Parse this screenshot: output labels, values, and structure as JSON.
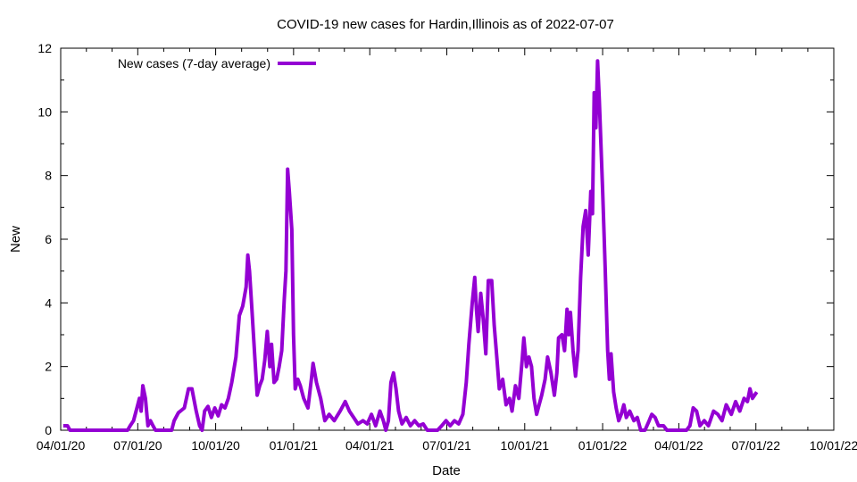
{
  "chart_data": {
    "type": "line",
    "title": "COVID-19 new cases for Hardin,Illinois as of 2022-07-07",
    "xlabel": "Date",
    "ylabel": "New",
    "xlim": [
      "2020-04-01",
      "2022-10-01"
    ],
    "ylim": [
      0,
      12
    ],
    "x_ticks": [
      "04/01/20",
      "07/01/20",
      "10/01/20",
      "01/01/21",
      "04/01/21",
      "07/01/21",
      "10/01/21",
      "01/01/22",
      "04/01/22",
      "07/01/22",
      "10/01/22"
    ],
    "y_ticks": [
      "0",
      "2",
      "4",
      "6",
      "8",
      "10",
      "12"
    ],
    "grid": false,
    "legend_position": "top-left",
    "series": [
      {
        "name": "New cases (7-day average)",
        "color": "#9400d3",
        "points": [
          [
            "2020-04-04",
            0.14
          ],
          [
            "2020-04-09",
            0.14
          ],
          [
            "2020-04-12",
            0
          ],
          [
            "2020-05-01",
            0
          ],
          [
            "2020-06-01",
            0
          ],
          [
            "2020-06-19",
            0
          ],
          [
            "2020-06-22",
            0.14
          ],
          [
            "2020-06-26",
            0.3
          ],
          [
            "2020-06-30",
            0.7
          ],
          [
            "2020-07-03",
            1.0
          ],
          [
            "2020-07-05",
            0.6
          ],
          [
            "2020-07-07",
            1.4
          ],
          [
            "2020-07-10",
            1.0
          ],
          [
            "2020-07-13",
            0.14
          ],
          [
            "2020-07-16",
            0.3
          ],
          [
            "2020-07-19",
            0.14
          ],
          [
            "2020-07-22",
            0
          ],
          [
            "2020-08-10",
            0
          ],
          [
            "2020-08-13",
            0.3
          ],
          [
            "2020-08-18",
            0.55
          ],
          [
            "2020-08-25",
            0.7
          ],
          [
            "2020-08-30",
            1.3
          ],
          [
            "2020-09-03",
            1.3
          ],
          [
            "2020-09-08",
            0.6
          ],
          [
            "2020-09-12",
            0.14
          ],
          [
            "2020-09-15",
            0.0
          ],
          [
            "2020-09-18",
            0.6
          ],
          [
            "2020-09-22",
            0.75
          ],
          [
            "2020-09-26",
            0.4
          ],
          [
            "2020-09-30",
            0.7
          ],
          [
            "2020-10-04",
            0.45
          ],
          [
            "2020-10-08",
            0.8
          ],
          [
            "2020-10-12",
            0.7
          ],
          [
            "2020-10-16",
            1.0
          ],
          [
            "2020-10-20",
            1.5
          ],
          [
            "2020-10-25",
            2.3
          ],
          [
            "2020-10-29",
            3.6
          ],
          [
            "2020-11-02",
            3.9
          ],
          [
            "2020-11-06",
            4.5
          ],
          [
            "2020-11-08",
            5.5
          ],
          [
            "2020-11-10",
            5.0
          ],
          [
            "2020-11-13",
            3.7
          ],
          [
            "2020-11-16",
            2.4
          ],
          [
            "2020-11-19",
            1.1
          ],
          [
            "2020-11-22",
            1.4
          ],
          [
            "2020-11-25",
            1.6
          ],
          [
            "2020-11-28",
            2.2
          ],
          [
            "2020-12-01",
            3.1
          ],
          [
            "2020-12-04",
            2.0
          ],
          [
            "2020-12-06",
            2.7
          ],
          [
            "2020-12-09",
            1.5
          ],
          [
            "2020-12-12",
            1.6
          ],
          [
            "2020-12-15",
            2.0
          ],
          [
            "2020-12-18",
            2.5
          ],
          [
            "2020-12-21",
            4.1
          ],
          [
            "2020-12-23",
            5.0
          ],
          [
            "2020-12-25",
            8.2
          ],
          [
            "2020-12-27",
            7.5
          ],
          [
            "2020-12-30",
            6.3
          ],
          [
            "2021-01-01",
            3.0
          ],
          [
            "2021-01-03",
            1.3
          ],
          [
            "2021-01-06",
            1.6
          ],
          [
            "2021-01-09",
            1.4
          ],
          [
            "2021-01-13",
            1.0
          ],
          [
            "2021-01-18",
            0.7
          ],
          [
            "2021-01-22",
            1.6
          ],
          [
            "2021-01-24",
            2.1
          ],
          [
            "2021-01-28",
            1.5
          ],
          [
            "2021-02-02",
            1.0
          ],
          [
            "2021-02-07",
            0.3
          ],
          [
            "2021-02-12",
            0.5
          ],
          [
            "2021-02-18",
            0.3
          ],
          [
            "2021-02-25",
            0.6
          ],
          [
            "2021-03-03",
            0.9
          ],
          [
            "2021-03-08",
            0.6
          ],
          [
            "2021-03-13",
            0.4
          ],
          [
            "2021-03-18",
            0.2
          ],
          [
            "2021-03-24",
            0.3
          ],
          [
            "2021-03-29",
            0.2
          ],
          [
            "2021-04-03",
            0.5
          ],
          [
            "2021-04-08",
            0.14
          ],
          [
            "2021-04-13",
            0.6
          ],
          [
            "2021-04-17",
            0.3
          ],
          [
            "2021-04-20",
            0.0
          ],
          [
            "2021-04-23",
            0.3
          ],
          [
            "2021-04-26",
            1.5
          ],
          [
            "2021-04-29",
            1.8
          ],
          [
            "2021-05-02",
            1.3
          ],
          [
            "2021-05-05",
            0.6
          ],
          [
            "2021-05-09",
            0.2
          ],
          [
            "2021-05-14",
            0.4
          ],
          [
            "2021-05-19",
            0.14
          ],
          [
            "2021-05-24",
            0.3
          ],
          [
            "2021-05-29",
            0.14
          ],
          [
            "2021-06-03",
            0.2
          ],
          [
            "2021-06-08",
            0
          ],
          [
            "2021-06-20",
            0
          ],
          [
            "2021-06-25",
            0.14
          ],
          [
            "2021-06-30",
            0.3
          ],
          [
            "2021-07-05",
            0.14
          ],
          [
            "2021-07-10",
            0.3
          ],
          [
            "2021-07-15",
            0.2
          ],
          [
            "2021-07-20",
            0.5
          ],
          [
            "2021-07-24",
            1.5
          ],
          [
            "2021-07-27",
            2.7
          ],
          [
            "2021-07-31",
            4.0
          ],
          [
            "2021-08-03",
            4.8
          ],
          [
            "2021-08-05",
            3.8
          ],
          [
            "2021-08-07",
            3.1
          ],
          [
            "2021-08-10",
            4.3
          ],
          [
            "2021-08-13",
            3.5
          ],
          [
            "2021-08-16",
            2.4
          ],
          [
            "2021-08-19",
            4.7
          ],
          [
            "2021-08-23",
            4.7
          ],
          [
            "2021-08-26",
            3.3
          ],
          [
            "2021-08-29",
            2.3
          ],
          [
            "2021-09-01",
            1.3
          ],
          [
            "2021-09-05",
            1.6
          ],
          [
            "2021-09-09",
            0.8
          ],
          [
            "2021-09-13",
            1.0
          ],
          [
            "2021-09-16",
            0.6
          ],
          [
            "2021-09-20",
            1.4
          ],
          [
            "2021-09-24",
            1.0
          ],
          [
            "2021-09-28",
            2.2
          ],
          [
            "2021-09-30",
            2.9
          ],
          [
            "2021-10-03",
            2.0
          ],
          [
            "2021-10-06",
            2.3
          ],
          [
            "2021-10-09",
            2.0
          ],
          [
            "2021-10-12",
            1.0
          ],
          [
            "2021-10-15",
            0.5
          ],
          [
            "2021-10-18",
            0.8
          ],
          [
            "2021-10-21",
            1.1
          ],
          [
            "2021-10-25",
            1.6
          ],
          [
            "2021-10-28",
            2.3
          ],
          [
            "2021-11-01",
            1.8
          ],
          [
            "2021-11-05",
            1.1
          ],
          [
            "2021-11-08",
            1.8
          ],
          [
            "2021-11-10",
            2.9
          ],
          [
            "2021-11-14",
            3.0
          ],
          [
            "2021-11-17",
            2.5
          ],
          [
            "2021-11-20",
            3.8
          ],
          [
            "2021-11-22",
            3.0
          ],
          [
            "2021-11-24",
            3.7
          ],
          [
            "2021-11-27",
            2.5
          ],
          [
            "2021-11-30",
            1.7
          ],
          [
            "2021-12-03",
            2.5
          ],
          [
            "2021-12-06",
            4.8
          ],
          [
            "2021-12-09",
            6.4
          ],
          [
            "2021-12-12",
            6.9
          ],
          [
            "2021-12-15",
            5.5
          ],
          [
            "2021-12-18",
            7.5
          ],
          [
            "2021-12-20",
            6.8
          ],
          [
            "2021-12-22",
            10.6
          ],
          [
            "2021-12-24",
            9.5
          ],
          [
            "2021-12-26",
            11.6
          ],
          [
            "2021-12-28",
            10.4
          ],
          [
            "2022-01-01",
            7.5
          ],
          [
            "2022-01-04",
            5.1
          ],
          [
            "2022-01-07",
            2.5
          ],
          [
            "2022-01-09",
            1.6
          ],
          [
            "2022-01-11",
            2.4
          ],
          [
            "2022-01-14",
            1.2
          ],
          [
            "2022-01-17",
            0.7
          ],
          [
            "2022-01-20",
            0.3
          ],
          [
            "2022-01-23",
            0.5
          ],
          [
            "2022-01-26",
            0.8
          ],
          [
            "2022-01-29",
            0.4
          ],
          [
            "2022-02-02",
            0.6
          ],
          [
            "2022-02-07",
            0.3
          ],
          [
            "2022-02-11",
            0.4
          ],
          [
            "2022-02-15",
            0
          ],
          [
            "2022-02-20",
            0
          ],
          [
            "2022-02-25",
            0.3
          ],
          [
            "2022-02-28",
            0.5
          ],
          [
            "2022-03-04",
            0.4
          ],
          [
            "2022-03-08",
            0.14
          ],
          [
            "2022-03-14",
            0.14
          ],
          [
            "2022-03-18",
            0
          ],
          [
            "2022-04-10",
            0
          ],
          [
            "2022-04-14",
            0.14
          ],
          [
            "2022-04-18",
            0.7
          ],
          [
            "2022-04-22",
            0.6
          ],
          [
            "2022-04-26",
            0.14
          ],
          [
            "2022-05-01",
            0.3
          ],
          [
            "2022-05-06",
            0.14
          ],
          [
            "2022-05-12",
            0.6
          ],
          [
            "2022-05-17",
            0.5
          ],
          [
            "2022-05-22",
            0.3
          ],
          [
            "2022-05-27",
            0.8
          ],
          [
            "2022-06-02",
            0.5
          ],
          [
            "2022-06-07",
            0.9
          ],
          [
            "2022-06-12",
            0.6
          ],
          [
            "2022-06-17",
            1.0
          ],
          [
            "2022-06-21",
            0.9
          ],
          [
            "2022-06-24",
            1.3
          ],
          [
            "2022-06-27",
            1.0
          ],
          [
            "2022-07-02",
            1.2
          ]
        ]
      }
    ]
  }
}
